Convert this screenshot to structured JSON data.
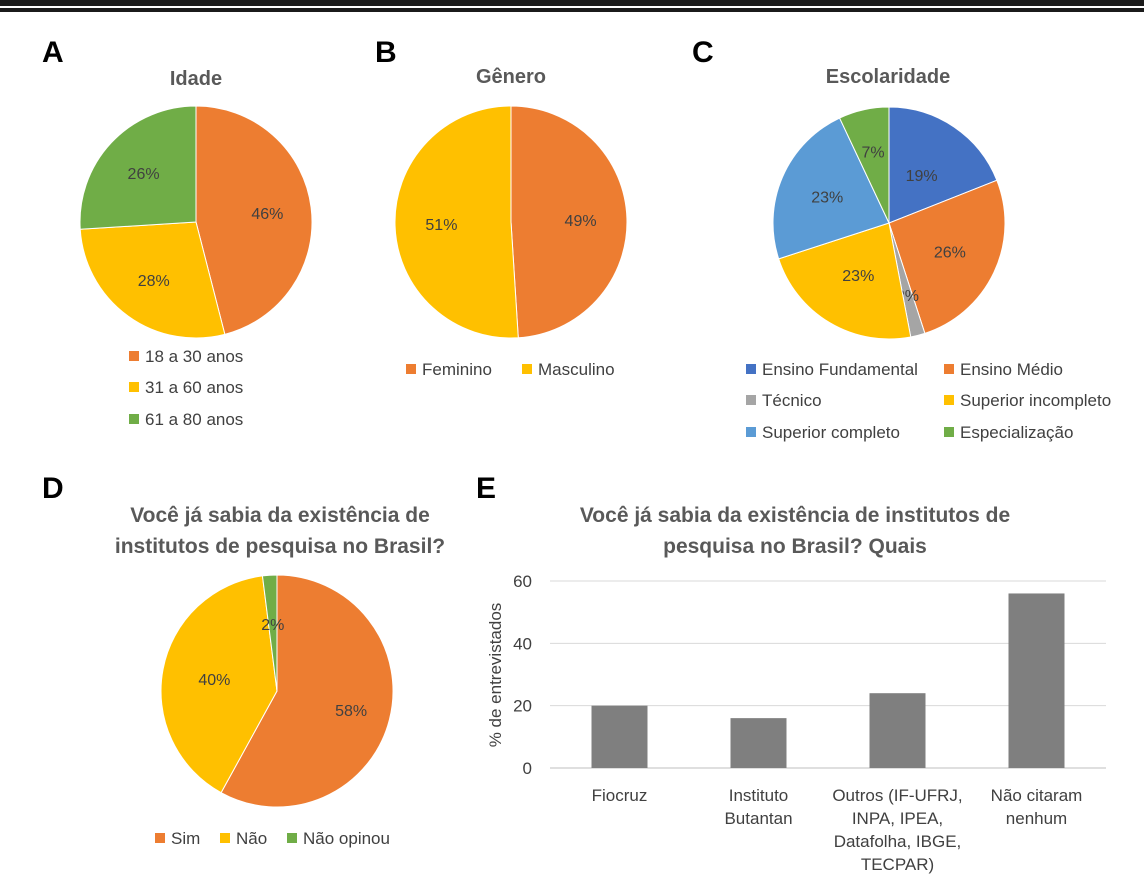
{
  "panels": [
    "A",
    "B",
    "C",
    "D",
    "E"
  ],
  "chart_data": [
    {
      "type": "pie",
      "panel": "A",
      "title": "Idade",
      "labels": [
        "18 a 30 anos",
        "31 a 60 anos",
        "61 a 80 anos"
      ],
      "values": [
        46,
        28,
        26
      ],
      "data_labels": [
        "46%",
        "28%",
        "26%"
      ],
      "colors": [
        "#ED7D31",
        "#FFC000",
        "#70AD47"
      ],
      "legend_position": "bottom"
    },
    {
      "type": "pie",
      "panel": "B",
      "title": "Gênero",
      "labels": [
        "Feminino",
        "Masculino"
      ],
      "values": [
        49,
        51
      ],
      "data_labels": [
        "49%",
        "51%"
      ],
      "colors": [
        "#ED7D31",
        "#FFC000"
      ],
      "legend_position": "bottom"
    },
    {
      "type": "pie",
      "panel": "C",
      "title": "Escolaridade",
      "labels": [
        "Ensino Fundamental",
        "Ensino Médio",
        "Técnico",
        "Superior incompleto",
        "Superior completo",
        "Especialização"
      ],
      "values": [
        19,
        26,
        2,
        23,
        23,
        7
      ],
      "data_labels": [
        "19%",
        "26%",
        "2%",
        "23%",
        "23%",
        "7%"
      ],
      "colors": [
        "#4472C4",
        "#ED7D31",
        "#A5A5A5",
        "#FFC000",
        "#5B9BD5",
        "#70AD47"
      ],
      "legend_position": "bottom"
    },
    {
      "type": "pie",
      "panel": "D",
      "title": "Você já sabia da existência de institutos de pesquisa no Brasil?",
      "labels": [
        "Sim",
        "Não",
        "Não opinou"
      ],
      "values": [
        58,
        40,
        2
      ],
      "data_labels": [
        "58%",
        "40%",
        "2%"
      ],
      "colors": [
        "#ED7D31",
        "#FFC000",
        "#70AD47"
      ],
      "legend_position": "bottom"
    },
    {
      "type": "bar",
      "panel": "E",
      "title": "Você já sabia da existência de institutos de pesquisa no Brasil? Quais",
      "categories": [
        "Fiocruz",
        "Instituto Butantan",
        "Outros (IF-UFRJ, INPA, IPEA, Datafolha, IBGE, TECPAR)",
        "Não citaram nenhum"
      ],
      "values": [
        20,
        16,
        24,
        56
      ],
      "ylabel": "% de entrevistados",
      "ylim": [
        0,
        60
      ],
      "yticks": [
        "0",
        "20",
        "40",
        "60"
      ],
      "grid": true,
      "bar_color": "#7F7F7F"
    }
  ]
}
